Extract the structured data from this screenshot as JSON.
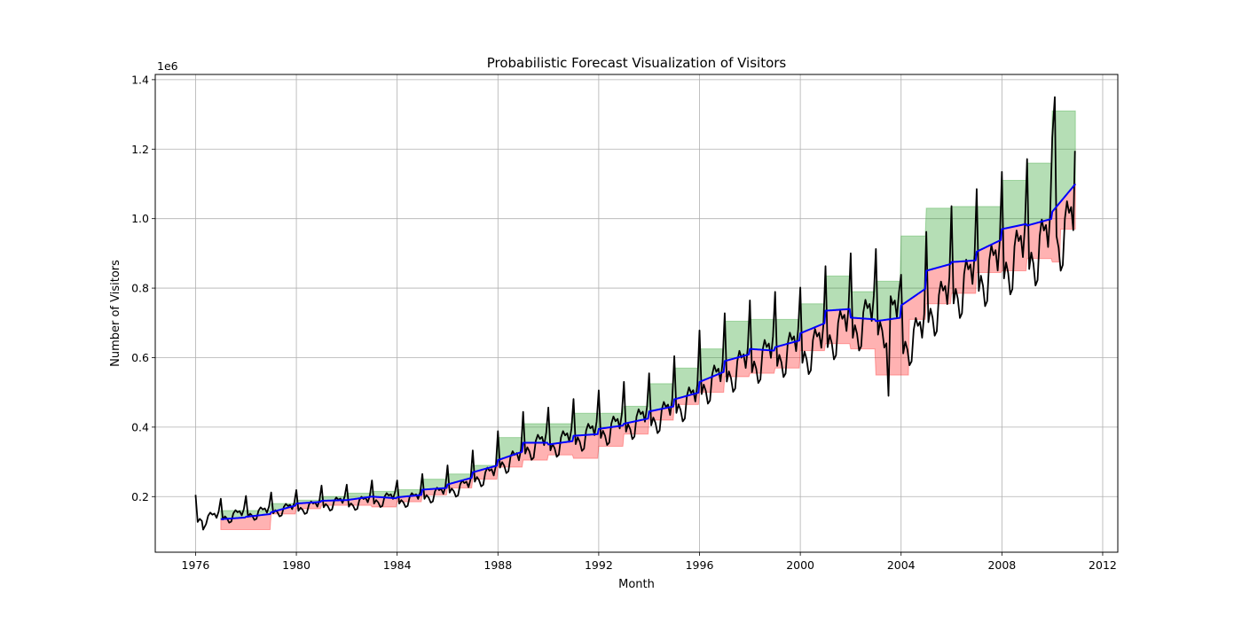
{
  "chart_data": {
    "type": "line",
    "title": "Probabilistic Forecast Visualization of Visitors",
    "xlabel": "Month",
    "ylabel": "Number of Visitors",
    "y_offset_label": "1e6",
    "xlim": [
      1974.4,
      2012.6
    ],
    "ylim": [
      0.04,
      1.415
    ],
    "x_ticks": [
      1976,
      1980,
      1984,
      1988,
      1992,
      1996,
      2000,
      2004,
      2008,
      2012
    ],
    "x_tick_labels": [
      "1976",
      "1980",
      "1984",
      "1988",
      "1992",
      "1996",
      "2000",
      "2004",
      "2008",
      "2012"
    ],
    "y_ticks": [
      0.2,
      0.4,
      0.6,
      0.8,
      1.0,
      1.2,
      1.4
    ],
    "y_tick_labels": [
      "0.2",
      "0.4",
      "0.6",
      "0.8",
      "1.0",
      "1.2",
      "1.4"
    ],
    "grid": true,
    "colors": {
      "actual": "#000000",
      "median": "#0000ff",
      "upper_band": "#2ca02c",
      "lower_band": "#ff0000"
    },
    "series": [
      {
        "role": "actual",
        "annual_mean": [
          0.145,
          0.152,
          0.16,
          0.17,
          0.177,
          0.188,
          0.19,
          0.2,
          0.2,
          0.215,
          0.235,
          0.27,
          0.315,
          0.36,
          0.37,
          0.39,
          0.41,
          0.43,
          0.45,
          0.49,
          0.55,
          0.59,
          0.62,
          0.64,
          0.65,
          0.7,
          0.73,
          0.74,
          0.68,
          0.78,
          0.84,
          0.88,
          0.92,
          0.95,
          1.0,
          1.05,
          1.1
        ],
        "seasonal_offsets": [
          0.07,
          -0.03,
          -0.015,
          -0.025,
          -0.045,
          -0.04,
          0.0,
          0.015,
          0.005,
          0.01,
          -0.01,
          0.02
        ],
        "seasonal_scale_note": "",
        "notable_points": [
          {
            "x": 1976.0,
            "y": 0.205
          },
          {
            "x": 1976.3,
            "y": 0.105
          },
          {
            "x": 2003.5,
            "y": 0.49
          },
          {
            "x": 2010.1,
            "y": 1.35
          },
          {
            "x": 2010.9,
            "y": 1.195
          }
        ]
      },
      {
        "role": "median",
        "annual_steps": [
          {
            "x0": 1977.0,
            "x1": 1978.0,
            "y0": 0.135,
            "y1": 0.14
          },
          {
            "x0": 1978.0,
            "x1": 1979.0,
            "y0": 0.142,
            "y1": 0.15
          },
          {
            "x0": 1979.0,
            "x1": 1980.0,
            "y0": 0.155,
            "y1": 0.175
          },
          {
            "x0": 1980.0,
            "x1": 1981.0,
            "y0": 0.18,
            "y1": 0.185
          },
          {
            "x0": 1981.0,
            "x1": 1982.0,
            "y0": 0.188,
            "y1": 0.19
          },
          {
            "x0": 1982.0,
            "x1": 1983.0,
            "y0": 0.19,
            "y1": 0.2
          },
          {
            "x0": 1983.0,
            "x1": 1984.0,
            "y0": 0.2,
            "y1": 0.195
          },
          {
            "x0": 1984.0,
            "x1": 1985.0,
            "y0": 0.198,
            "y1": 0.205
          },
          {
            "x0": 1985.0,
            "x1": 1986.0,
            "y0": 0.22,
            "y1": 0.225
          },
          {
            "x0": 1986.0,
            "x1": 1987.0,
            "y0": 0.235,
            "y1": 0.255
          },
          {
            "x0": 1987.0,
            "x1": 1988.0,
            "y0": 0.27,
            "y1": 0.29
          },
          {
            "x0": 1988.0,
            "x1": 1989.0,
            "y0": 0.305,
            "y1": 0.33
          },
          {
            "x0": 1989.0,
            "x1": 1990.0,
            "y0": 0.355,
            "y1": 0.355
          },
          {
            "x0": 1990.0,
            "x1": 1991.0,
            "y0": 0.35,
            "y1": 0.36
          },
          {
            "x0": 1991.0,
            "x1": 1992.0,
            "y0": 0.375,
            "y1": 0.38
          },
          {
            "x0": 1992.0,
            "x1": 1993.0,
            "y0": 0.395,
            "y1": 0.405
          },
          {
            "x0": 1993.0,
            "x1": 1994.0,
            "y0": 0.41,
            "y1": 0.425
          },
          {
            "x0": 1994.0,
            "x1": 1995.0,
            "y0": 0.445,
            "y1": 0.46
          },
          {
            "x0": 1995.0,
            "x1": 1996.0,
            "y0": 0.48,
            "y1": 0.5
          },
          {
            "x0": 1996.0,
            "x1": 1997.0,
            "y0": 0.53,
            "y1": 0.56
          },
          {
            "x0": 1997.0,
            "x1": 1998.0,
            "y0": 0.59,
            "y1": 0.61
          },
          {
            "x0": 1998.0,
            "x1": 1999.0,
            "y0": 0.625,
            "y1": 0.62
          },
          {
            "x0": 1999.0,
            "x1": 2000.0,
            "y0": 0.63,
            "y1": 0.65
          },
          {
            "x0": 2000.0,
            "x1": 2001.0,
            "y0": 0.67,
            "y1": 0.7
          },
          {
            "x0": 2001.0,
            "x1": 2002.0,
            "y0": 0.735,
            "y1": 0.74
          },
          {
            "x0": 2002.0,
            "x1": 2003.0,
            "y0": 0.715,
            "y1": 0.71
          },
          {
            "x0": 2003.0,
            "x1": 2004.0,
            "y0": 0.705,
            "y1": 0.715
          },
          {
            "x0": 2004.0,
            "x1": 2005.0,
            "y0": 0.75,
            "y1": 0.8
          },
          {
            "x0": 2005.0,
            "x1": 2006.0,
            "y0": 0.85,
            "y1": 0.87
          },
          {
            "x0": 2006.0,
            "x1": 2007.0,
            "y0": 0.875,
            "y1": 0.88
          },
          {
            "x0": 2007.0,
            "x1": 2008.0,
            "y0": 0.905,
            "y1": 0.94
          },
          {
            "x0": 2008.0,
            "x1": 2009.0,
            "y0": 0.97,
            "y1": 0.985
          },
          {
            "x0": 2009.0,
            "x1": 2010.0,
            "y0": 0.98,
            "y1": 1.0
          },
          {
            "x0": 2010.0,
            "x1": 2010.92,
            "y0": 1.02,
            "y1": 1.1
          }
        ]
      },
      {
        "role": "upper_band",
        "annual": [
          {
            "x0": 1977.0,
            "x1": 1979.0,
            "y": 0.16
          },
          {
            "x0": 1979.0,
            "x1": 1980.0,
            "y": 0.18
          },
          {
            "x0": 1980.0,
            "x1": 1981.0,
            "y": 0.19
          },
          {
            "x0": 1981.0,
            "x1": 1982.0,
            "y": 0.2
          },
          {
            "x0": 1982.0,
            "x1": 1983.0,
            "y": 0.21
          },
          {
            "x0": 1983.0,
            "x1": 1984.0,
            "y": 0.215
          },
          {
            "x0": 1984.0,
            "x1": 1985.0,
            "y": 0.22
          },
          {
            "x0": 1985.0,
            "x1": 1986.0,
            "y": 0.25
          },
          {
            "x0": 1986.0,
            "x1": 1987.0,
            "y": 0.265
          },
          {
            "x0": 1987.0,
            "x1": 1988.0,
            "y": 0.29
          },
          {
            "x0": 1988.0,
            "x1": 1989.0,
            "y": 0.37
          },
          {
            "x0": 1989.0,
            "x1": 1990.0,
            "y": 0.41
          },
          {
            "x0": 1990.0,
            "x1": 1991.0,
            "y": 0.41
          },
          {
            "x0": 1991.0,
            "x1": 1992.0,
            "y": 0.44
          },
          {
            "x0": 1992.0,
            "x1": 1993.0,
            "y": 0.44
          },
          {
            "x0": 1993.0,
            "x1": 1994.0,
            "y": 0.46
          },
          {
            "x0": 1994.0,
            "x1": 1995.0,
            "y": 0.525
          },
          {
            "x0": 1995.0,
            "x1": 1996.0,
            "y": 0.57
          },
          {
            "x0": 1996.0,
            "x1": 1997.0,
            "y": 0.625
          },
          {
            "x0": 1997.0,
            "x1": 1998.0,
            "y": 0.705
          },
          {
            "x0": 1998.0,
            "x1": 1999.0,
            "y": 0.71
          },
          {
            "x0": 1999.0,
            "x1": 2000.0,
            "y": 0.71
          },
          {
            "x0": 2000.0,
            "x1": 2001.0,
            "y": 0.755
          },
          {
            "x0": 2001.0,
            "x1": 2002.0,
            "y": 0.835
          },
          {
            "x0": 2002.0,
            "x1": 2003.0,
            "y": 0.79
          },
          {
            "x0": 2003.0,
            "x1": 2004.0,
            "y": 0.82
          },
          {
            "x0": 2004.0,
            "x1": 2005.0,
            "y": 0.95
          },
          {
            "x0": 2005.0,
            "x1": 2006.0,
            "y": 1.03
          },
          {
            "x0": 2006.0,
            "x1": 2007.0,
            "y": 1.035
          },
          {
            "x0": 2007.0,
            "x1": 2008.0,
            "y": 1.035
          },
          {
            "x0": 2008.0,
            "x1": 2009.0,
            "y": 1.11
          },
          {
            "x0": 2009.0,
            "x1": 2010.0,
            "y": 1.16
          },
          {
            "x0": 2010.0,
            "x1": 2010.92,
            "y": 1.31
          }
        ]
      },
      {
        "role": "lower_band",
        "annual": [
          {
            "x0": 1977.0,
            "x1": 1979.0,
            "y": 0.105
          },
          {
            "x0": 1979.0,
            "x1": 1980.0,
            "y": 0.15
          },
          {
            "x0": 1980.0,
            "x1": 1981.0,
            "y": 0.165
          },
          {
            "x0": 1981.0,
            "x1": 1982.0,
            "y": 0.175
          },
          {
            "x0": 1982.0,
            "x1": 1983.0,
            "y": 0.175
          },
          {
            "x0": 1983.0,
            "x1": 1984.0,
            "y": 0.17
          },
          {
            "x0": 1984.0,
            "x1": 1985.0,
            "y": 0.185
          },
          {
            "x0": 1985.0,
            "x1": 1986.0,
            "y": 0.205
          },
          {
            "x0": 1986.0,
            "x1": 1987.0,
            "y": 0.225
          },
          {
            "x0": 1987.0,
            "x1": 1988.0,
            "y": 0.25
          },
          {
            "x0": 1988.0,
            "x1": 1989.0,
            "y": 0.285
          },
          {
            "x0": 1989.0,
            "x1": 1990.0,
            "y": 0.305
          },
          {
            "x0": 1990.0,
            "x1": 1991.0,
            "y": 0.32
          },
          {
            "x0": 1991.0,
            "x1": 1992.0,
            "y": 0.31
          },
          {
            "x0": 1992.0,
            "x1": 1993.0,
            "y": 0.345
          },
          {
            "x0": 1993.0,
            "x1": 1994.0,
            "y": 0.38
          },
          {
            "x0": 1994.0,
            "x1": 1995.0,
            "y": 0.42
          },
          {
            "x0": 1995.0,
            "x1": 1996.0,
            "y": 0.465
          },
          {
            "x0": 1996.0,
            "x1": 1997.0,
            "y": 0.5
          },
          {
            "x0": 1997.0,
            "x1": 1998.0,
            "y": 0.545
          },
          {
            "x0": 1998.0,
            "x1": 1999.0,
            "y": 0.555
          },
          {
            "x0": 1999.0,
            "x1": 2000.0,
            "y": 0.57
          },
          {
            "x0": 2000.0,
            "x1": 2001.0,
            "y": 0.62
          },
          {
            "x0": 2001.0,
            "x1": 2002.0,
            "y": 0.64
          },
          {
            "x0": 2002.0,
            "x1": 2003.0,
            "y": 0.625
          },
          {
            "x0": 2003.0,
            "x1": 2004.3,
            "y": 0.55
          },
          {
            "x0": 2004.3,
            "x1": 2005.0,
            "y": 0.71
          },
          {
            "x0": 2005.0,
            "x1": 2006.0,
            "y": 0.755
          },
          {
            "x0": 2006.0,
            "x1": 2007.0,
            "y": 0.785
          },
          {
            "x0": 2007.0,
            "x1": 2008.0,
            "y": 0.845
          },
          {
            "x0": 2008.0,
            "x1": 2009.0,
            "y": 0.85
          },
          {
            "x0": 2009.0,
            "x1": 2010.0,
            "y": 0.885
          },
          {
            "x0": 2010.0,
            "x1": 2010.3,
            "y": 0.875
          },
          {
            "x0": 2010.3,
            "x1": 2010.92,
            "y": 0.97
          }
        ]
      }
    ]
  }
}
